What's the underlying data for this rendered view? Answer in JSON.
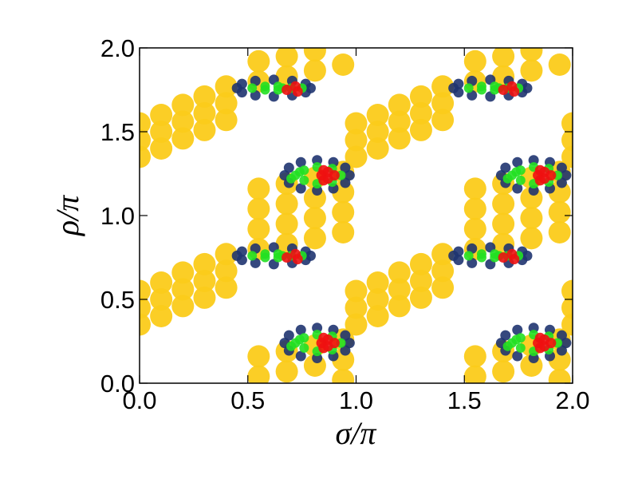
{
  "chart_data": {
    "type": "scatter",
    "xlabel": "σ/π",
    "ylabel": "ρ/π",
    "xlim": [
      0,
      2
    ],
    "ylim": [
      0,
      2
    ],
    "xticks": [
      {
        "value": 0,
        "label": "0.0"
      },
      0.5,
      {
        "value": 1,
        "label": "1.0"
      },
      1.5,
      {
        "value": 2,
        "label": "2.0"
      }
    ],
    "yticks": [
      {
        "value": 0,
        "label": "0.0"
      },
      0.5,
      {
        "value": 1,
        "label": "1.0"
      },
      1.5,
      {
        "value": 2,
        "label": "2.0"
      }
    ],
    "series": [
      {
        "color": "#fbcb1a",
        "x": [
          0,
          0,
          0,
          0.1,
          0.1,
          0.1,
          0.2,
          0.2,
          0.2,
          0.3,
          0.3,
          0.3,
          0.4,
          0.4,
          0.4,
          0,
          0,
          0,
          0.1,
          0.1,
          0.1,
          0.2,
          0.2,
          0.2,
          0.3,
          0.3,
          0.3,
          0.4,
          0.4,
          0.4,
          0.55,
          0.55,
          0.55,
          0.55,
          0.68,
          0.68,
          0.68,
          0.68,
          0.81,
          0.81,
          0.81,
          0.81,
          0.94,
          0.94,
          0.94,
          0.94,
          0.55,
          0.55,
          0.68,
          0.68,
          0.81,
          0.81,
          0.94,
          0.94,
          0.94,
          0.55,
          0.55,
          0.68,
          0.68,
          0.81,
          0.81,
          0.94,
          1,
          1,
          1,
          1.1,
          1.1,
          1.1,
          1.2,
          1.2,
          1.2,
          1.3,
          1.3,
          1.3,
          1.4,
          1.4,
          1.4,
          1,
          1,
          1,
          1.1,
          1.1,
          1.1,
          1.2,
          1.2,
          1.2,
          1.3,
          1.3,
          1.3,
          1.4,
          1.4,
          1.4,
          1.55,
          1.55,
          1.55,
          1.55,
          1.68,
          1.68,
          1.68,
          1.68,
          1.81,
          1.81,
          1.81,
          1.81,
          1.94,
          1.94,
          1.94,
          1.94,
          1.55,
          1.55,
          1.68,
          1.68,
          1.81,
          1.81,
          1.94,
          1.94,
          1.94,
          1.55,
          1.55,
          1.68,
          1.68,
          1.81,
          1.81,
          1.94,
          2,
          2,
          2,
          2,
          2,
          2
        ],
        "values": [
          0.35,
          0.45,
          0.55,
          0.4,
          0.5,
          0.6,
          0.46,
          0.56,
          0.66,
          0.51,
          0.61,
          0.71,
          0.57,
          0.67,
          0.77,
          1.35,
          1.45,
          1.55,
          1.4,
          1.5,
          1.6,
          1.46,
          1.56,
          1.66,
          1.51,
          1.61,
          1.71,
          1.57,
          1.67,
          1.77,
          0.8,
          0.92,
          1.04,
          1.16,
          0.83,
          0.95,
          1.07,
          1.19,
          0.865,
          0.985,
          1.105,
          1.225,
          0.9,
          1.02,
          1.14,
          1.26,
          0.04,
          0.16,
          0.07,
          0.19,
          0.105,
          0.225,
          0.02,
          0.14,
          0.26,
          1.8,
          1.92,
          1.83,
          1.95,
          1.865,
          1.985,
          1.9,
          0.35,
          0.45,
          0.55,
          0.4,
          0.5,
          0.6,
          0.46,
          0.56,
          0.66,
          0.51,
          0.61,
          0.71,
          0.57,
          0.67,
          0.77,
          1.35,
          1.45,
          1.55,
          1.4,
          1.5,
          1.6,
          1.46,
          1.56,
          1.66,
          1.51,
          1.61,
          1.71,
          1.57,
          1.67,
          1.77,
          0.8,
          0.92,
          1.04,
          1.16,
          0.83,
          0.95,
          1.07,
          1.19,
          0.865,
          0.985,
          1.105,
          1.225,
          0.9,
          1.02,
          1.14,
          1.26,
          0.04,
          0.16,
          0.07,
          0.19,
          0.105,
          0.225,
          0.02,
          0.14,
          0.26,
          1.8,
          1.92,
          1.83,
          1.95,
          1.865,
          1.985,
          1.9,
          0.35,
          0.45,
          0.55,
          1.35,
          1.45,
          1.55
        ]
      },
      {
        "color": "#1f3470",
        "x": [
          0.97,
          0.95,
          0.895,
          0.82,
          0.745,
          0.69,
          0.67,
          0.69,
          0.745,
          0.82,
          0.895,
          0.95,
          1.97,
          1.95,
          1.895,
          1.82,
          1.745,
          1.69,
          1.67,
          1.69,
          1.745,
          1.82,
          1.895,
          1.95,
          0.97,
          0.95,
          0.895,
          0.82,
          0.745,
          0.69,
          0.67,
          0.69,
          0.745,
          0.82,
          0.895,
          0.95,
          1.97,
          1.95,
          1.895,
          1.82,
          1.745,
          1.69,
          1.67,
          1.69,
          1.745,
          1.82,
          1.895,
          1.95,
          0.79,
          0.767,
          0.705,
          0.62,
          0.535,
          0.473,
          0.45,
          0.473,
          0.535,
          0.62,
          0.705,
          0.767,
          1.79,
          1.767,
          1.705,
          1.62,
          1.535,
          1.473,
          1.45,
          1.473,
          1.535,
          1.62,
          1.705,
          1.767,
          0.79,
          0.767,
          0.705,
          0.62,
          0.535,
          0.473,
          0.45,
          0.473,
          0.535,
          0.62,
          0.705,
          0.767,
          1.79,
          1.767,
          1.705,
          1.62,
          1.535,
          1.473,
          1.45,
          1.473,
          1.535,
          1.62,
          1.705,
          1.767
        ],
        "values": [
          0.24,
          0.285,
          0.318,
          0.33,
          0.318,
          0.285,
          0.24,
          0.195,
          0.162,
          0.15,
          0.162,
          0.195,
          0.24,
          0.285,
          0.318,
          0.33,
          0.318,
          0.285,
          0.24,
          0.195,
          0.162,
          0.15,
          0.162,
          0.195,
          1.24,
          1.285,
          1.318,
          1.33,
          1.318,
          1.285,
          1.24,
          1.195,
          1.162,
          1.15,
          1.162,
          1.195,
          1.24,
          1.285,
          1.318,
          1.33,
          1.318,
          1.285,
          1.24,
          1.195,
          1.162,
          1.15,
          1.162,
          1.195,
          0.76,
          0.785,
          0.803,
          0.81,
          0.803,
          0.785,
          0.76,
          0.735,
          0.717,
          0.71,
          0.717,
          0.735,
          0.76,
          0.785,
          0.803,
          0.81,
          0.803,
          0.785,
          0.76,
          0.735,
          0.717,
          0.71,
          0.717,
          0.735,
          1.76,
          1.785,
          1.803,
          1.81,
          1.803,
          1.785,
          1.76,
          1.735,
          1.717,
          1.71,
          1.717,
          1.735,
          1.76,
          1.785,
          1.803,
          1.81,
          1.803,
          1.785,
          1.76,
          1.735,
          1.717,
          1.71,
          1.717,
          1.735
        ]
      },
      {
        "color": "#22e022",
        "x": [
          0.72,
          0.76,
          0.76,
          0.82,
          0.82,
          0.89,
          0.89,
          0.93,
          0.7,
          0.74,
          1.72,
          1.76,
          1.76,
          1.82,
          1.82,
          1.89,
          1.89,
          1.93,
          1.7,
          1.74,
          0.72,
          0.76,
          0.76,
          0.82,
          0.82,
          0.89,
          0.89,
          0.93,
          0.7,
          0.74,
          1.72,
          1.76,
          1.76,
          1.82,
          1.82,
          1.89,
          1.89,
          1.93,
          1.7,
          1.74,
          0.52,
          0.58,
          0.58,
          0.64,
          0.64,
          0.7,
          0.75,
          0.66,
          1.52,
          1.58,
          1.58,
          1.64,
          1.64,
          1.7,
          1.75,
          1.66,
          0.52,
          0.58,
          0.58,
          0.64,
          0.64,
          0.7,
          0.75,
          0.66,
          1.52,
          1.58,
          1.58,
          1.64,
          1.64,
          1.7,
          1.75,
          1.66
        ],
        "values": [
          0.24,
          0.27,
          0.21,
          0.29,
          0.19,
          0.28,
          0.2,
          0.24,
          0.22,
          0.26,
          0.24,
          0.27,
          0.21,
          0.29,
          0.19,
          0.28,
          0.2,
          0.24,
          0.22,
          0.26,
          1.24,
          1.27,
          1.21,
          1.29,
          1.19,
          1.28,
          1.2,
          1.24,
          1.22,
          1.26,
          1.24,
          1.27,
          1.21,
          1.29,
          1.19,
          1.28,
          1.2,
          1.24,
          1.22,
          1.26,
          0.76,
          0.77,
          0.75,
          0.77,
          0.75,
          0.76,
          0.76,
          0.76,
          0.76,
          0.77,
          0.75,
          0.77,
          0.75,
          0.76,
          0.76,
          0.76,
          1.76,
          1.77,
          1.75,
          1.77,
          1.75,
          1.76,
          1.76,
          1.76,
          1.76,
          1.77,
          1.75,
          1.77,
          1.75,
          1.76,
          1.76,
          1.76
        ]
      },
      {
        "color": "#ee1111",
        "x": [
          0.84,
          0.87,
          0.87,
          0.9,
          0.85,
          0.85,
          1.84,
          1.87,
          1.87,
          1.9,
          1.85,
          1.85,
          0.84,
          0.87,
          0.87,
          0.9,
          0.85,
          0.85,
          1.84,
          1.87,
          1.87,
          1.9,
          1.85,
          1.85,
          0.72,
          0.68,
          0.73,
          1.72,
          1.68,
          1.73,
          0.72,
          0.68,
          0.73,
          1.72,
          1.68,
          1.73
        ],
        "values": [
          0.24,
          0.22,
          0.26,
          0.24,
          0.21,
          0.27,
          0.24,
          0.22,
          0.26,
          0.24,
          0.21,
          0.27,
          1.24,
          1.22,
          1.26,
          1.24,
          1.21,
          1.27,
          1.24,
          1.22,
          1.26,
          1.24,
          1.21,
          1.27,
          0.77,
          0.75,
          0.74,
          0.77,
          0.75,
          0.74,
          1.77,
          1.75,
          1.74,
          1.77,
          1.75,
          1.74
        ]
      }
    ]
  }
}
